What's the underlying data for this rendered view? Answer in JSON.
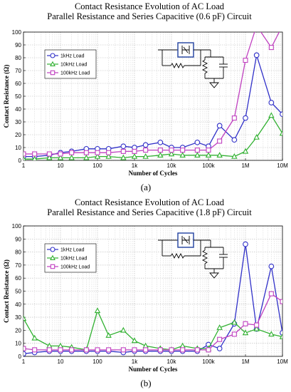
{
  "chart_data": [
    {
      "type": "line",
      "title": "Contact Resistance Evolution of AC Load",
      "subtitle": "Parallel Resistance and Series Capacitive (0.6 pF) Circuit",
      "xlabel": "Number of Cycles",
      "ylabel": "Contact Resistance (Ω)",
      "panel_label": "(a)",
      "x_scale": "log",
      "xlim": [
        1,
        10000000
      ],
      "ylim": [
        0,
        100
      ],
      "x_ticks": [
        1,
        10,
        100,
        1000,
        10000,
        100000,
        1000000,
        10000000
      ],
      "x_tick_labels": [
        "1",
        "10",
        "100",
        "1k",
        "10k",
        "100k",
        "1M",
        "10M"
      ],
      "y_ticks": [
        0,
        10,
        20,
        30,
        40,
        50,
        60,
        70,
        80,
        90,
        100
      ],
      "grid": true,
      "legend_position": "top-left",
      "x": [
        1,
        2,
        5,
        10,
        20,
        50,
        100,
        200,
        500,
        1000,
        2000,
        5000,
        10000,
        20000,
        50000,
        100000,
        200000,
        500000,
        1000000,
        2000000,
        5000000,
        10000000
      ],
      "series": [
        {
          "name": "1kHz Load",
          "color": "#3030c8",
          "marker": "circle",
          "values": [
            3,
            3,
            4,
            6,
            7,
            9,
            9,
            9,
            11,
            10,
            12,
            14,
            10,
            10,
            14,
            11,
            27,
            16,
            33,
            82,
            45,
            36
          ]
        },
        {
          "name": "10kHz Load",
          "color": "#30b030",
          "marker": "triangle",
          "values": [
            1,
            1,
            2,
            2,
            2,
            2,
            3,
            3,
            2,
            3,
            3,
            4,
            5,
            4,
            4,
            4,
            4,
            3,
            7,
            18,
            35,
            21
          ]
        },
        {
          "name": "100kHz Load",
          "color": "#c040c0",
          "marker": "square",
          "values": [
            5,
            5,
            5,
            5,
            6,
            6,
            6,
            6,
            7,
            7,
            8,
            8,
            8,
            8,
            8,
            8,
            15,
            33,
            78,
            105,
            88,
            105
          ]
        }
      ]
    },
    {
      "type": "line",
      "title": "Contact Resistance Evolution of AC Load",
      "subtitle": "Parallel Resistance and Series Capacitive (1.8 pF) Circuit",
      "xlabel": "Number of Cycles",
      "ylabel": "Contact Resistance (Ω)",
      "panel_label": "(b)",
      "x_scale": "log",
      "xlim": [
        1,
        10000000
      ],
      "ylim": [
        0,
        100
      ],
      "x_ticks": [
        1,
        10,
        100,
        1000,
        10000,
        100000,
        1000000,
        10000000
      ],
      "x_tick_labels": [
        "1",
        "10",
        "100",
        "1k",
        "10k",
        "100k",
        "1M",
        "10M"
      ],
      "y_ticks": [
        0,
        10,
        20,
        30,
        40,
        50,
        60,
        70,
        80,
        90,
        100
      ],
      "grid": true,
      "legend_position": "top-left",
      "x": [
        1,
        2,
        5,
        10,
        20,
        50,
        100,
        200,
        500,
        1000,
        2000,
        5000,
        10000,
        20000,
        50000,
        100000,
        200000,
        500000,
        1000000,
        2000000,
        5000000,
        10000000
      ],
      "series": [
        {
          "name": "1kHz Load",
          "color": "#3030c8",
          "marker": "circle",
          "values": [
            2,
            3,
            4,
            4,
            4,
            4,
            4,
            4,
            3,
            4,
            4,
            4,
            4,
            4,
            4,
            9,
            6,
            25,
            86,
            21,
            69,
            18
          ]
        },
        {
          "name": "10kHz Load",
          "color": "#30b030",
          "marker": "triangle",
          "values": [
            29,
            14,
            8,
            8,
            7,
            5,
            35,
            16,
            20,
            12,
            8,
            6,
            5,
            8,
            6,
            6,
            22,
            26,
            18,
            21,
            17,
            15
          ]
        },
        {
          "name": "100kHz Load",
          "color": "#c040c0",
          "marker": "square",
          "values": [
            6,
            5,
            5,
            5,
            5,
            5,
            5,
            5,
            5,
            5,
            5,
            5,
            5,
            5,
            5,
            5,
            13,
            17,
            25,
            24,
            48,
            42
          ]
        }
      ]
    }
  ]
}
